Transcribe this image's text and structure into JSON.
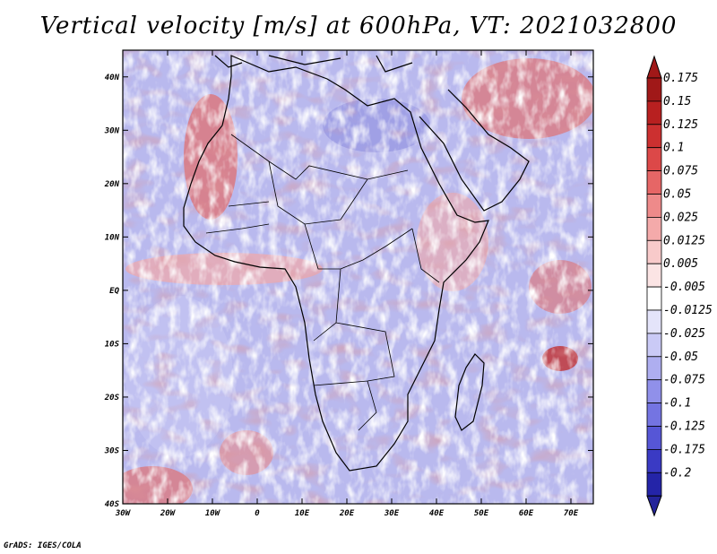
{
  "title": "Vertical velocity [m/s] at 600hPa, VT: 2021032800",
  "credit": "GrADS: IGES/COLA",
  "map": {
    "lon_range": [
      -30,
      75
    ],
    "lat_range": [
      -40,
      45
    ],
    "lat_ticks": [
      {
        "value": 40,
        "label": "40N"
      },
      {
        "value": 30,
        "label": "30N"
      },
      {
        "value": 20,
        "label": "20N"
      },
      {
        "value": 10,
        "label": "10N"
      },
      {
        "value": 0,
        "label": "EQ"
      },
      {
        "value": -10,
        "label": "10S"
      },
      {
        "value": -20,
        "label": "20S"
      },
      {
        "value": -30,
        "label": "30S"
      },
      {
        "value": -40,
        "label": "40S"
      }
    ],
    "lon_ticks": [
      {
        "value": -30,
        "label": "30W"
      },
      {
        "value": -20,
        "label": "20W"
      },
      {
        "value": -10,
        "label": "10W"
      },
      {
        "value": 0,
        "label": "0"
      },
      {
        "value": 10,
        "label": "10E"
      },
      {
        "value": 20,
        "label": "20E"
      },
      {
        "value": 30,
        "label": "30E"
      },
      {
        "value": 40,
        "label": "40E"
      },
      {
        "value": 50,
        "label": "50E"
      },
      {
        "value": 60,
        "label": "60E"
      },
      {
        "value": 70,
        "label": "70E"
      }
    ]
  },
  "colorbar": {
    "levels": [
      {
        "label": "0.175",
        "color": "#a01818"
      },
      {
        "label": "0.15",
        "color": "#b82020"
      },
      {
        "label": "0.125",
        "color": "#cc3030"
      },
      {
        "label": "0.1",
        "color": "#dc4848"
      },
      {
        "label": "0.075",
        "color": "#e66666"
      },
      {
        "label": "0.05",
        "color": "#ee8a8a"
      },
      {
        "label": "0.025",
        "color": "#f4aaaa"
      },
      {
        "label": "0.0125",
        "color": "#f8caca"
      },
      {
        "label": "0.005",
        "color": "#fbe4e4"
      },
      {
        "label": "-0.005",
        "color": "#ffffff"
      },
      {
        "label": "-0.0125",
        "color": "#e4e4fa"
      },
      {
        "label": "-0.025",
        "color": "#cacaf6"
      },
      {
        "label": "-0.05",
        "color": "#aeaef0"
      },
      {
        "label": "-0.075",
        "color": "#9090ea"
      },
      {
        "label": "-0.1",
        "color": "#7474e2"
      },
      {
        "label": "-0.125",
        "color": "#5656d6"
      },
      {
        "label": "-0.175",
        "color": "#3a3ac4"
      },
      {
        "label": "-0.2",
        "color": "#2424a8"
      }
    ],
    "top_color": "#a01818",
    "bottom_color": "#24249a"
  }
}
